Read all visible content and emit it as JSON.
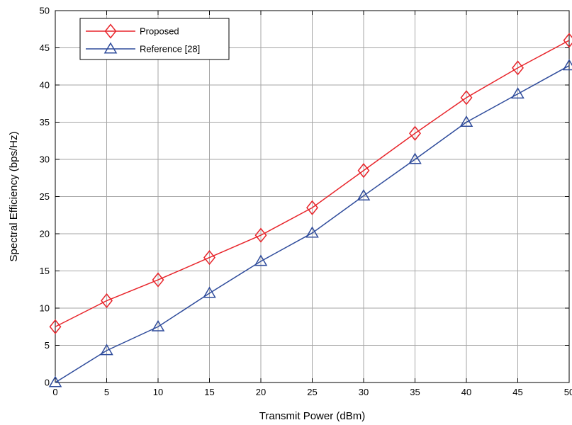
{
  "chart_data": {
    "type": "line",
    "xlabel": "Transmit Power (dBm)",
    "ylabel": "Spectral Efficiency (bps/Hz)",
    "xlim": [
      0,
      50
    ],
    "ylim": [
      0,
      50
    ],
    "xticks": [
      0,
      5,
      10,
      15,
      20,
      25,
      30,
      35,
      40,
      45,
      50
    ],
    "yticks": [
      0,
      5,
      10,
      15,
      20,
      25,
      30,
      35,
      40,
      45,
      50
    ],
    "grid": true,
    "legend_position": "top-left",
    "x": [
      0,
      5,
      10,
      15,
      20,
      25,
      30,
      35,
      40,
      45,
      50
    ],
    "series": [
      {
        "name": "Proposed",
        "marker": "diamond",
        "color": "#e8252b",
        "values": [
          7.5,
          11.0,
          13.8,
          16.8,
          19.8,
          23.5,
          28.5,
          33.5,
          38.3,
          42.3,
          46.0
        ]
      },
      {
        "name": "Reference [28]",
        "marker": "triangle",
        "color": "#2e4b9b",
        "values": [
          0.0,
          4.3,
          7.5,
          12.0,
          16.3,
          20.1,
          25.1,
          30.0,
          35.0,
          38.8,
          42.6
        ]
      }
    ]
  }
}
